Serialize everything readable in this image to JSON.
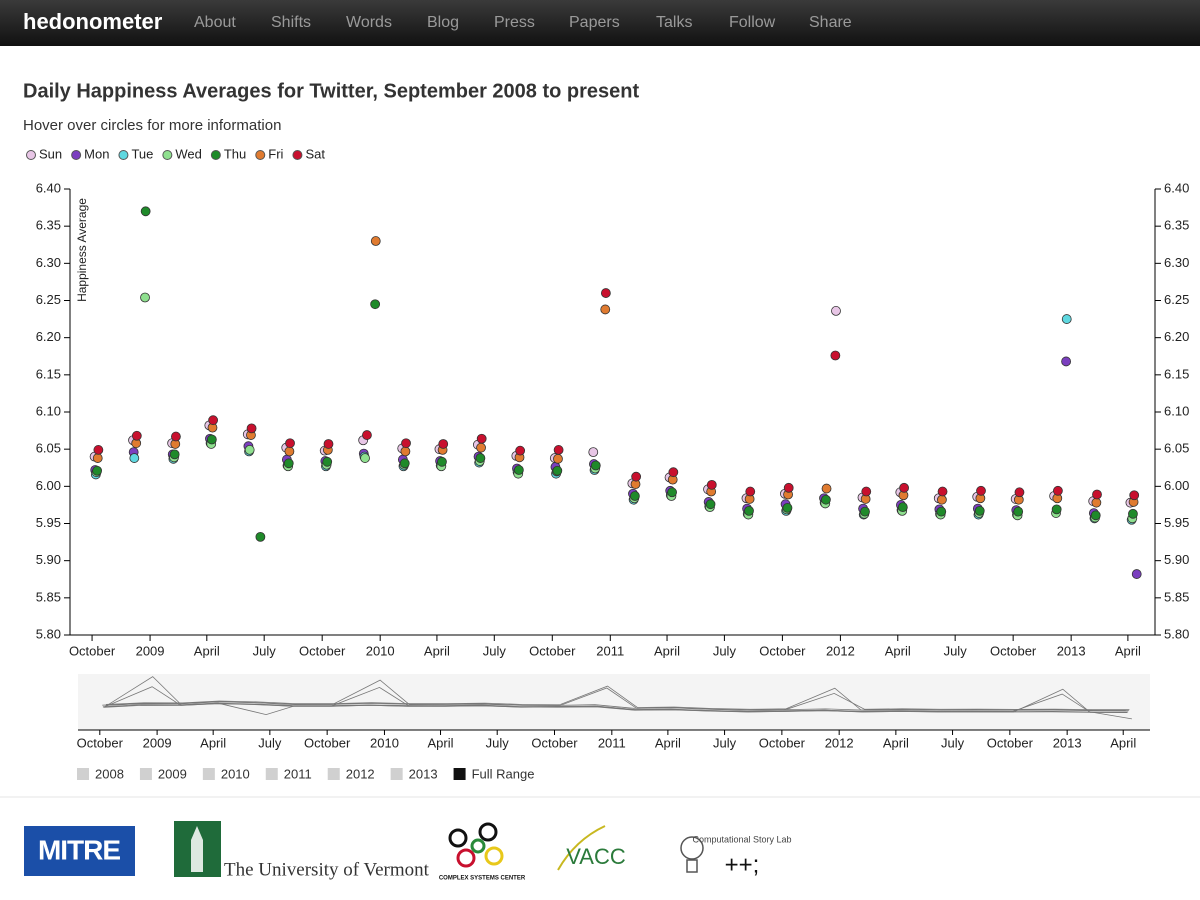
{
  "nav": {
    "brand": "hedonometer",
    "links": [
      "About",
      "Shifts",
      "Words",
      "Blog",
      "Press",
      "Papers",
      "Talks",
      "Follow",
      "Share"
    ]
  },
  "chart_data": {
    "type": "scatter",
    "title": "Daily Happiness Averages for Twitter, September 2008 to present",
    "subtitle": "Hover over circles for more information",
    "ylabel": "Happiness Average",
    "xlim": [
      "2008-08-27",
      "2013-05-14"
    ],
    "xticks": [
      {
        "value": "2008-10-01",
        "label": "October"
      },
      {
        "value": "2009-01-01",
        "label": "2009"
      },
      {
        "value": "2009-04-01",
        "label": "April"
      },
      {
        "value": "2009-07-01",
        "label": "July"
      },
      {
        "value": "2009-10-01",
        "label": "October"
      },
      {
        "value": "2010-01-01",
        "label": "2010"
      },
      {
        "value": "2010-04-01",
        "label": "April"
      },
      {
        "value": "2010-07-01",
        "label": "July"
      },
      {
        "value": "2010-10-01",
        "label": "October"
      },
      {
        "value": "2011-01-01",
        "label": "2011"
      },
      {
        "value": "2011-04-01",
        "label": "April"
      },
      {
        "value": "2011-07-01",
        "label": "July"
      },
      {
        "value": "2011-10-01",
        "label": "October"
      },
      {
        "value": "2012-01-01",
        "label": "2012"
      },
      {
        "value": "2012-04-01",
        "label": "April"
      },
      {
        "value": "2012-07-01",
        "label": "July"
      },
      {
        "value": "2012-10-01",
        "label": "October"
      },
      {
        "value": "2013-01-01",
        "label": "2013"
      },
      {
        "value": "2013-04-01",
        "label": "April"
      }
    ],
    "ylim": [
      5.8,
      6.4
    ],
    "yticks": [
      {
        "value": 5.8,
        "label": "5.80"
      },
      5.85,
      {
        "value": 5.9,
        "label": "5.90"
      },
      5.95,
      {
        "value": 6,
        "label": "6.00"
      },
      6.05,
      {
        "value": 6.1,
        "label": "6.10"
      },
      6.15,
      {
        "value": 6.2,
        "label": "6.20"
      },
      6.25,
      {
        "value": 6.3,
        "label": "6.30"
      },
      6.35,
      {
        "value": 6.4,
        "label": "6.40"
      }
    ],
    "y2lim": [
      5.8,
      6.4
    ],
    "y2ticks": [
      {
        "value": 5.8,
        "label": "5.80"
      },
      5.85,
      {
        "value": 5.9,
        "label": "5.90"
      },
      5.95,
      {
        "value": 6,
        "label": "6.00"
      },
      6.05,
      {
        "value": 6.1,
        "label": "6.10"
      },
      6.15,
      {
        "value": 6.2,
        "label": "6.20"
      },
      6.25,
      {
        "value": 6.3,
        "label": "6.30"
      },
      6.35,
      {
        "value": 6.4,
        "label": "6.40"
      }
    ],
    "series": [
      {
        "name": "Sun",
        "color": "#e8c6e6",
        "x": [
          "2008-10-05",
          "2008-12-05",
          "2009-02-05",
          "2009-04-05",
          "2009-06-05",
          "2009-08-05",
          "2009-10-05",
          "2009-12-05",
          "2010-02-05",
          "2010-04-05",
          "2010-06-05",
          "2010-08-05",
          "2010-10-05",
          "2010-12-05",
          "2011-02-05",
          "2011-04-05",
          "2011-06-05",
          "2011-08-05",
          "2011-10-05",
          "2011-12-25",
          "2012-02-05",
          "2012-04-05",
          "2012-06-05",
          "2012-08-05",
          "2012-10-05",
          "2012-12-05",
          "2013-02-05",
          "2013-04-05"
        ],
        "values": [
          6.04,
          6.062,
          6.058,
          6.082,
          6.07,
          6.052,
          6.048,
          6.062,
          6.051,
          6.05,
          6.056,
          6.041,
          6.038,
          6.046,
          6.004,
          6.012,
          5.996,
          5.984,
          5.99,
          6.236,
          5.985,
          5.992,
          5.984,
          5.986,
          5.983,
          5.987,
          5.98,
          5.978
        ]
      },
      {
        "name": "Mon",
        "color": "#7b3fbf",
        "x": [
          "2008-10-06",
          "2008-12-06",
          "2009-02-06",
          "2009-04-06",
          "2009-06-06",
          "2009-08-06",
          "2009-10-06",
          "2009-12-06",
          "2010-02-06",
          "2010-04-06",
          "2010-06-06",
          "2010-08-06",
          "2010-10-06",
          "2010-12-06",
          "2011-02-06",
          "2011-04-06",
          "2011-06-06",
          "2011-08-06",
          "2011-10-06",
          "2011-12-06",
          "2012-02-06",
          "2012-04-06",
          "2012-06-06",
          "2012-08-06",
          "2012-10-06",
          "2012-12-24",
          "2013-02-06",
          "2013-04-15"
        ],
        "values": [
          6.022,
          6.046,
          6.043,
          6.064,
          6.054,
          6.036,
          6.034,
          6.044,
          6.036,
          6.034,
          6.04,
          6.024,
          6.026,
          6.03,
          5.99,
          5.994,
          5.979,
          5.97,
          5.976,
          5.984,
          5.97,
          5.975,
          5.969,
          5.97,
          5.968,
          6.168,
          5.964,
          5.882
        ]
      },
      {
        "name": "Tue",
        "color": "#5fd8e0",
        "x": [
          "2008-10-07",
          "2008-12-07",
          "2009-02-07",
          "2009-04-07",
          "2009-06-07",
          "2009-08-07",
          "2009-10-07",
          "2009-12-07",
          "2010-02-07",
          "2010-04-07",
          "2010-06-07",
          "2010-08-07",
          "2010-10-07",
          "2010-12-07",
          "2011-02-07",
          "2011-04-07",
          "2011-06-07",
          "2011-08-07",
          "2011-10-07",
          "2011-12-07",
          "2012-02-07",
          "2012-04-07",
          "2012-06-07",
          "2012-08-07",
          "2012-10-07",
          "2012-12-25",
          "2013-02-07",
          "2013-04-07"
        ],
        "values": [
          6.016,
          6.038,
          6.037,
          6.058,
          6.047,
          6.028,
          6.027,
          6.04,
          6.027,
          6.028,
          6.032,
          6.019,
          6.017,
          6.022,
          5.982,
          5.988,
          5.973,
          5.963,
          5.967,
          5.978,
          5.962,
          5.968,
          5.963,
          5.962,
          5.962,
          6.225,
          5.957,
          5.955
        ]
      },
      {
        "name": "Wed",
        "color": "#8fe08f",
        "x": [
          "2008-10-08",
          "2008-12-24",
          "2009-02-08",
          "2009-04-08",
          "2009-06-08",
          "2009-08-08",
          "2009-10-08",
          "2009-12-08",
          "2010-02-08",
          "2010-04-08",
          "2010-06-08",
          "2010-08-08",
          "2010-10-08",
          "2010-12-08",
          "2011-02-08",
          "2011-04-08",
          "2011-06-08",
          "2011-08-08",
          "2011-10-08",
          "2011-12-08",
          "2012-02-08",
          "2012-04-08",
          "2012-06-08",
          "2012-08-08",
          "2012-10-08",
          "2012-12-08",
          "2013-02-08",
          "2013-04-08"
        ],
        "values": [
          6.019,
          6.254,
          6.039,
          6.057,
          6.049,
          6.027,
          6.029,
          6.038,
          6.029,
          6.027,
          6.034,
          6.017,
          6.02,
          6.024,
          5.984,
          5.987,
          5.972,
          5.962,
          5.969,
          5.977,
          5.963,
          5.967,
          5.962,
          5.964,
          5.961,
          5.964,
          5.958,
          5.957
        ]
      },
      {
        "name": "Thu",
        "color": "#1f8a2a",
        "x": [
          "2008-10-09",
          "2008-12-25",
          "2009-02-09",
          "2009-04-09",
          "2009-06-25",
          "2009-08-09",
          "2009-10-09",
          "2009-12-24",
          "2010-02-09",
          "2010-04-09",
          "2010-06-09",
          "2010-08-09",
          "2010-10-09",
          "2010-12-09",
          "2011-02-09",
          "2011-04-09",
          "2011-06-09",
          "2011-08-09",
          "2011-10-09",
          "2011-12-09",
          "2012-02-09",
          "2012-04-09",
          "2012-06-09",
          "2012-08-09",
          "2012-10-09",
          "2012-12-09",
          "2013-02-09",
          "2013-04-09"
        ],
        "values": [
          6.021,
          6.37,
          6.043,
          6.063,
          5.932,
          6.031,
          6.033,
          6.245,
          6.031,
          6.033,
          6.038,
          6.022,
          6.021,
          6.028,
          5.987,
          5.992,
          5.976,
          5.967,
          5.971,
          5.982,
          5.966,
          5.972,
          5.966,
          5.967,
          5.966,
          5.969,
          5.961,
          5.963
        ]
      },
      {
        "name": "Fri",
        "color": "#e07b30",
        "x": [
          "2008-10-10",
          "2008-12-10",
          "2009-02-10",
          "2009-04-10",
          "2009-06-10",
          "2009-08-10",
          "2009-10-10",
          "2009-12-25",
          "2010-02-10",
          "2010-04-10",
          "2010-06-10",
          "2010-08-10",
          "2010-10-10",
          "2010-12-24",
          "2011-02-10",
          "2011-04-10",
          "2011-06-10",
          "2011-08-10",
          "2011-10-10",
          "2011-12-10",
          "2012-02-10",
          "2012-04-10",
          "2012-06-10",
          "2012-08-10",
          "2012-10-10",
          "2012-12-10",
          "2013-02-10",
          "2013-04-10"
        ],
        "values": [
          6.038,
          6.058,
          6.057,
          6.079,
          6.069,
          6.047,
          6.049,
          6.33,
          6.047,
          6.049,
          6.052,
          6.039,
          6.037,
          6.238,
          6.003,
          6.009,
          5.993,
          5.983,
          5.989,
          5.997,
          5.983,
          5.988,
          5.982,
          5.984,
          5.982,
          5.984,
          5.978,
          5.979
        ]
      },
      {
        "name": "Sat",
        "color": "#c8102e",
        "x": [
          "2008-10-11",
          "2008-12-11",
          "2009-02-11",
          "2009-04-11",
          "2009-06-11",
          "2009-08-11",
          "2009-10-11",
          "2009-12-11",
          "2010-02-11",
          "2010-04-11",
          "2010-06-11",
          "2010-08-11",
          "2010-10-11",
          "2010-12-25",
          "2011-02-11",
          "2011-04-11",
          "2011-06-11",
          "2011-08-11",
          "2011-10-11",
          "2011-12-24",
          "2012-02-11",
          "2012-04-11",
          "2012-06-11",
          "2012-08-11",
          "2012-10-11",
          "2012-12-11",
          "2013-02-11",
          "2013-04-11"
        ],
        "values": [
          6.049,
          6.068,
          6.067,
          6.089,
          6.078,
          6.058,
          6.057,
          6.069,
          6.058,
          6.057,
          6.064,
          6.048,
          6.049,
          6.26,
          6.013,
          6.019,
          6.002,
          5.993,
          5.998,
          6.176,
          5.993,
          5.998,
          5.993,
          5.994,
          5.992,
          5.994,
          5.989,
          5.988
        ]
      }
    ]
  },
  "range_buttons": [
    "2008",
    "2009",
    "2010",
    "2011",
    "2012",
    "2013",
    "Full Range"
  ],
  "logos": {
    "mitre": "MITRE",
    "uvm": "The University of Vermont",
    "csc": "COMPLEX SYSTEMS CENTER",
    "vacc": "VACC",
    "story_lab": "Computational Story Lab",
    "story_lab_mark": "++;"
  }
}
